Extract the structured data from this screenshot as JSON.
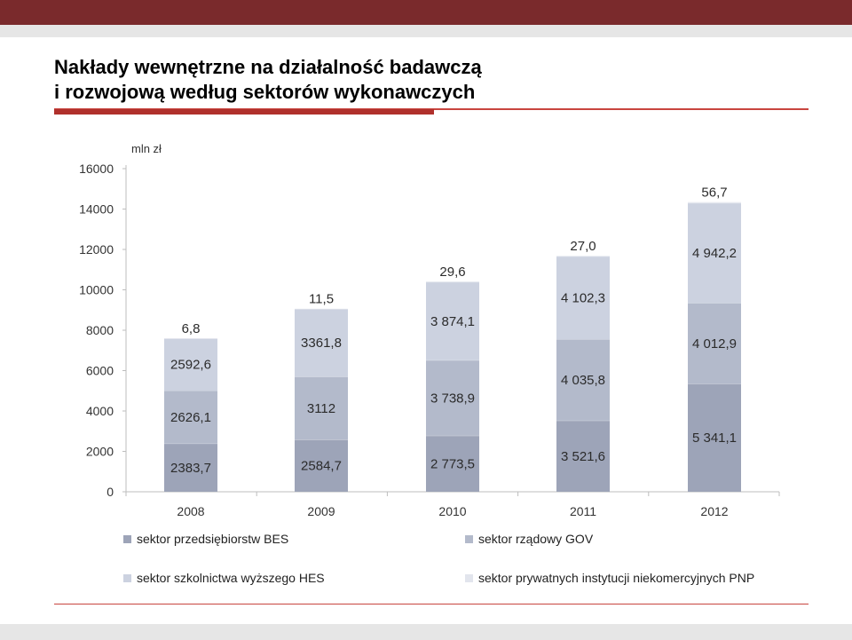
{
  "slide": {
    "title_line1": "Nakłady wewnętrzne na działalność badawczą",
    "title_line2": "i rozwojową według sektorów wykonawczych"
  },
  "colors": {
    "band": "#7a2a2c",
    "accent_line": "#c8453f",
    "BES": "#9da4b8",
    "GOV": "#b3bacb",
    "HES": "#ccd2e0",
    "PNP": "#e2e5ed"
  },
  "chart_data": {
    "type": "bar",
    "stacked": true,
    "unit_label": "mln zł",
    "categories": [
      "2008",
      "2009",
      "2010",
      "2011",
      "2012"
    ],
    "ylim": [
      0,
      16000
    ],
    "yticks": [
      "0",
      "2000",
      "4000",
      "6000",
      "8000",
      "10000",
      "12000",
      "14000",
      "16000"
    ],
    "grid": false,
    "legend_position": "bottom",
    "series": [
      {
        "name": "sektor przedsiębiorstw BES",
        "key": "BES",
        "values": [
          2383.7,
          2584.7,
          2773.5,
          3521.6,
          5341.1
        ],
        "labels": [
          "2383,7",
          "2584,7",
          "2 773,5",
          "3 521,6",
          "5 341,1"
        ]
      },
      {
        "name": "sektor rządowy GOV",
        "key": "GOV",
        "values": [
          2626.1,
          3112,
          3738.9,
          4035.8,
          4012.9
        ],
        "labels": [
          "2626,1",
          "3112",
          "3 738,9",
          "4 035,8",
          "4 012,9"
        ]
      },
      {
        "name": "sektor szkolnictwa wyższego HES",
        "key": "HES",
        "values": [
          2592.6,
          3361.8,
          3874.1,
          4102.3,
          4942.2
        ],
        "labels": [
          "2592,6",
          "3361,8",
          "3 874,1",
          "4 102,3",
          "4 942,2"
        ]
      },
      {
        "name": "sektor prywatnych instytucji niekomercyjnych PNP",
        "key": "PNP",
        "values": [
          6.8,
          11.5,
          29.6,
          27.0,
          56.7
        ],
        "labels": [
          "6,8",
          "11,5",
          "29,6",
          "27,0",
          "56,7"
        ]
      }
    ]
  }
}
